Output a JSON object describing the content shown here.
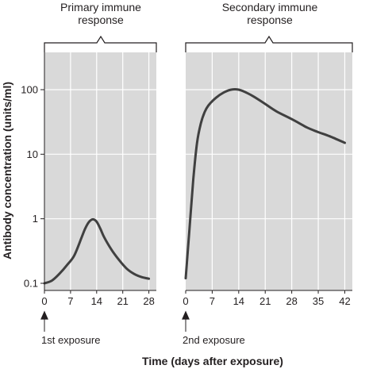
{
  "chart_data": [
    {
      "type": "line",
      "title": "Primary immune response",
      "y_scale": "log",
      "ylim": [
        0.1,
        200
      ],
      "yticks": [
        0.1,
        1,
        10,
        100
      ],
      "ytick_labels": [
        "0.1",
        "1",
        "10",
        "100"
      ],
      "xlim": [
        0,
        30
      ],
      "xticks": [
        0,
        7,
        14,
        21,
        28
      ],
      "xtick_labels": [
        "0",
        "7",
        "14",
        "21",
        "28"
      ],
      "grid": true,
      "annotation": "1st exposure",
      "series": [
        {
          "x": [
            0,
            2,
            4,
            6,
            8,
            10,
            11,
            12,
            13,
            14,
            15,
            16,
            18,
            20,
            22,
            24,
            26,
            28
          ],
          "y": [
            0.1,
            0.11,
            0.14,
            0.19,
            0.27,
            0.52,
            0.72,
            0.9,
            0.98,
            0.9,
            0.7,
            0.52,
            0.33,
            0.23,
            0.17,
            0.14,
            0.125,
            0.118
          ]
        }
      ]
    },
    {
      "type": "line",
      "title": "Secondary immune response",
      "y_scale": "log",
      "ylim": [
        0.1,
        200
      ],
      "xlim": [
        0,
        44
      ],
      "xticks": [
        0,
        7,
        14,
        21,
        28,
        35,
        42
      ],
      "xtick_labels": [
        "0",
        "7",
        "14",
        "21",
        "28",
        "35",
        "42"
      ],
      "grid": true,
      "annotation": "2nd exposure",
      "series": [
        {
          "x": [
            0,
            1,
            2,
            3,
            4,
            5,
            6,
            8,
            10,
            12,
            14,
            16,
            18,
            21,
            24,
            28,
            32,
            35,
            38,
            42
          ],
          "y": [
            0.12,
            0.7,
            4,
            15,
            30,
            45,
            57,
            75,
            90,
            100,
            100,
            90,
            78,
            60,
            46,
            35,
            26,
            22,
            19,
            15
          ]
        }
      ]
    }
  ],
  "shared": {
    "ylabel": "Antibody concentration (units/ml)",
    "xlabel": "Time (days after exposure)"
  },
  "labels": {
    "primary_line1": "Primary immune",
    "primary_line2": "response",
    "secondary_line1": "Secondary immune",
    "secondary_line2": "response",
    "first_exposure": "1st exposure",
    "second_exposure": "2nd exposure"
  },
  "colors": {
    "panel_background": "#d9d9d9",
    "curve": "#404040",
    "text": "#231f20"
  }
}
